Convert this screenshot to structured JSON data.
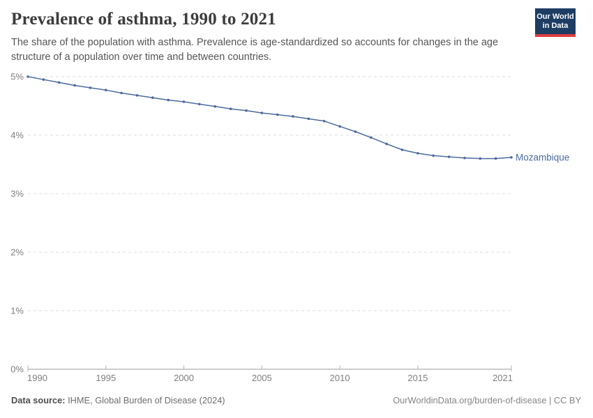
{
  "header": {
    "title": "Prevalence of asthma, 1990 to 2021",
    "subtitle": "The share of the population with asthma. Prevalence is age-standardized so accounts for changes in the age structure of a population over time and between countries.",
    "logo": {
      "line1": "Our World",
      "line2": "in Data"
    }
  },
  "chart_data": {
    "type": "line",
    "title": "Prevalence of asthma, 1990 to 2021",
    "x": [
      1990,
      1991,
      1992,
      1993,
      1994,
      1995,
      1996,
      1997,
      1998,
      1999,
      2000,
      2001,
      2002,
      2003,
      2004,
      2005,
      2006,
      2007,
      2008,
      2009,
      2010,
      2011,
      2012,
      2013,
      2014,
      2015,
      2016,
      2017,
      2018,
      2019,
      2020,
      2021
    ],
    "series": [
      {
        "name": "Mozambique",
        "color": "#4C6A9C",
        "values": [
          5.0,
          4.95,
          4.9,
          4.85,
          4.81,
          4.77,
          4.72,
          4.68,
          4.64,
          4.6,
          4.57,
          4.53,
          4.49,
          4.45,
          4.42,
          4.38,
          4.35,
          4.32,
          4.28,
          4.24,
          4.15,
          4.06,
          3.96,
          3.85,
          3.75,
          3.69,
          3.65,
          3.63,
          3.61,
          3.6,
          3.6,
          3.62
        ]
      }
    ],
    "xlabel": "",
    "ylabel": "",
    "xlim": [
      1990,
      2021
    ],
    "ylim": [
      0,
      5
    ],
    "x_ticks": [
      1990,
      1995,
      2000,
      2005,
      2010,
      2015,
      2021
    ],
    "y_ticks": [
      0,
      1,
      2,
      3,
      4,
      5
    ],
    "y_tick_suffix": "%",
    "grid": "horizontal-dashed",
    "legend_position": "end-of-line-label"
  },
  "footer": {
    "datasource_label": "Data source:",
    "datasource_value": "IHME, Global Burden of Disease (2024)",
    "attribution": "OurWorldinData.org/burden-of-disease | CC BY"
  },
  "colors": {
    "line": "#4C6A9C",
    "grid": "#dedede",
    "axis": "#9a9a9a",
    "tick": "#b5b5b5",
    "axis_text": "#7e7e7e",
    "title_text": "#3c3c3c",
    "subtitle_text": "#555555",
    "logo_bg": "#1d3d63",
    "logo_bar": "#dd3c41"
  }
}
